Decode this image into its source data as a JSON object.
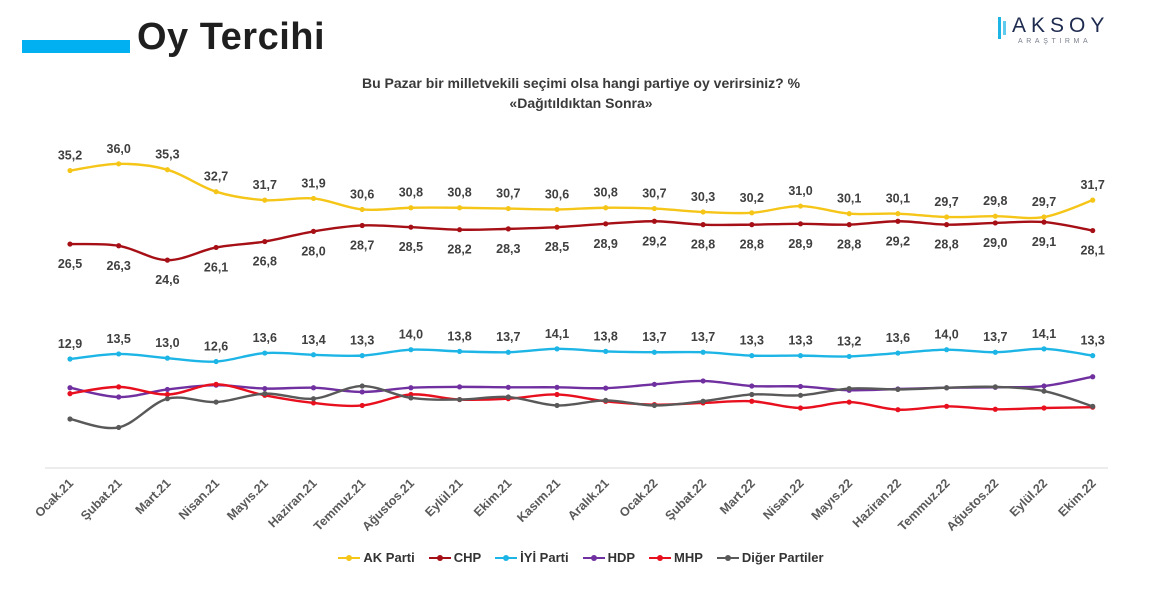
{
  "header": {
    "title": "Oy Tercihi",
    "accent_color": "#00b0f0"
  },
  "logo": {
    "main": "AKSOY",
    "sub": "ARAŞTIRMA",
    "icon": "aksoy-logo-icon"
  },
  "chart_data": {
    "type": "line",
    "title": "Bu Pazar bir milletvekili seçimi olsa hangi partiye oy verirsiniz? %",
    "subtitle": "«Dağıtıldıktan  Sonra»",
    "xlabel": "",
    "ylabel": "",
    "ylim": [
      0,
      40
    ],
    "grid": false,
    "legend_position": "bottom",
    "categories": [
      "Ocak.21",
      "Şubat.21",
      "Mart.21",
      "Nisan.21",
      "Mayıs.21",
      "Haziran.21",
      "Temmuz.21",
      "Ağustos.21",
      "Eylül.21",
      "Ekim.21",
      "Kasım.21",
      "Aralık.21",
      "Ocak.22",
      "Şubat.22",
      "Mart.22",
      "Nisan.22",
      "Mayıs.22",
      "Haziran.22",
      "Temmuz.22",
      "Ağustos.22",
      "Eylül.22",
      "Ekim.22"
    ],
    "series": [
      {
        "name": "AK Parti",
        "color": "#f5c518",
        "label_position": "above",
        "labeled": true,
        "values": [
          35.2,
          36.0,
          35.3,
          32.7,
          31.7,
          31.9,
          30.6,
          30.8,
          30.8,
          30.7,
          30.6,
          30.8,
          30.7,
          30.3,
          30.2,
          31.0,
          30.1,
          30.1,
          29.7,
          29.8,
          29.7,
          31.7
        ],
        "labels": [
          "35,2",
          "36,0",
          "35,3",
          "32,7",
          "31,7",
          "31,9",
          "30,6",
          "30,8",
          "30,8",
          "30,7",
          "30,6",
          "30,8",
          "30,7",
          "30,3",
          "30,2",
          "31,0",
          "30,1",
          "30,1",
          "29,7",
          "29,8",
          "29,7",
          "31,7"
        ]
      },
      {
        "name": "CHP",
        "color": "#a50f15",
        "label_position": "below",
        "labeled": true,
        "values": [
          26.5,
          26.3,
          24.6,
          26.1,
          26.8,
          28.0,
          28.7,
          28.5,
          28.2,
          28.3,
          28.5,
          28.9,
          29.2,
          28.8,
          28.8,
          28.9,
          28.8,
          29.2,
          28.8,
          29.0,
          29.1,
          28.1
        ],
        "labels": [
          "26,5",
          "26,3",
          "24,6",
          "26,1",
          "26,8",
          "28,0",
          "28,7",
          "28,5",
          "28,2",
          "28,3",
          "28,5",
          "28,9",
          "29,2",
          "28,8",
          "28,8",
          "28,9",
          "28,8",
          "29,2",
          "28,8",
          "29,0",
          "29,1",
          "28,1"
        ]
      },
      {
        "name": "İYİ Parti",
        "color": "#1cb5e6",
        "label_position": "above",
        "labeled": true,
        "values": [
          12.9,
          13.5,
          13.0,
          12.6,
          13.6,
          13.4,
          13.3,
          14.0,
          13.8,
          13.7,
          14.1,
          13.8,
          13.7,
          13.7,
          13.3,
          13.3,
          13.2,
          13.6,
          14.0,
          13.7,
          14.1,
          13.3
        ],
        "labels": [
          "12,9",
          "13,5",
          "13,0",
          "12,6",
          "13,6",
          "13,4",
          "13,3",
          "14,0",
          "13,8",
          "13,7",
          "14,1",
          "13,8",
          "13,7",
          "13,7",
          "13,3",
          "13,3",
          "13,2",
          "13,6",
          "14,0",
          "13,7",
          "14,1",
          "13,3"
        ]
      },
      {
        "name": "HDP",
        "color": "#7030a0",
        "labeled": false,
        "values": [
          9.5,
          8.4,
          9.3,
          9.8,
          9.4,
          9.5,
          9.0,
          9.5,
          9.6,
          9.55,
          9.55,
          9.45,
          9.9,
          10.3,
          9.7,
          9.65,
          9.2,
          9.35,
          9.5,
          9.55,
          9.7,
          10.8
        ]
      },
      {
        "name": "MHP",
        "color": "#e8101e",
        "labeled": false,
        "values": [
          8.8,
          9.6,
          8.7,
          9.9,
          8.6,
          7.7,
          7.4,
          8.7,
          8.1,
          8.2,
          8.7,
          7.9,
          7.5,
          7.7,
          7.9,
          7.1,
          7.8,
          6.9,
          7.3,
          6.95,
          7.1,
          7.2
        ]
      },
      {
        "name": "Diğer Partiler",
        "color": "#595959",
        "labeled": false,
        "values": [
          5.8,
          4.8,
          8.2,
          7.8,
          8.8,
          8.2,
          9.7,
          8.3,
          8.1,
          8.4,
          7.4,
          8.0,
          7.4,
          7.9,
          8.7,
          8.6,
          9.4,
          9.3,
          9.5,
          9.6,
          9.1,
          7.3
        ]
      }
    ]
  }
}
